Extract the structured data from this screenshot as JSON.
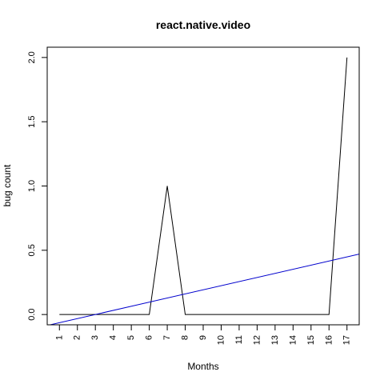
{
  "chart_data": {
    "type": "line",
    "title": "react.native.video",
    "xlabel": "Months",
    "ylabel": "bug count",
    "x": [
      1,
      2,
      3,
      4,
      5,
      6,
      7,
      8,
      9,
      10,
      11,
      12,
      13,
      14,
      15,
      16,
      17
    ],
    "x_tick_labels": [
      "1",
      "2",
      "3",
      "4",
      "5",
      "6",
      "7",
      "8",
      "9",
      "10",
      "11",
      "12",
      "13",
      "14",
      "15",
      "16",
      "17"
    ],
    "y_tick_values": [
      0.0,
      0.5,
      1.0,
      1.5,
      2.0
    ],
    "y_tick_labels": [
      "0.0",
      "0.5",
      "1.0",
      "1.5",
      "2.0"
    ],
    "xlim": [
      0.32,
      17.68
    ],
    "ylim": [
      -0.08,
      2.08
    ],
    "grid": false,
    "legend": "none",
    "series": [
      {
        "values": [
          0,
          0,
          0,
          0,
          0,
          0,
          1,
          0,
          0,
          0,
          0,
          0,
          0,
          0,
          0,
          0,
          2
        ],
        "color": "#000000"
      }
    ],
    "trend_line": {
      "intercept": -0.0956,
      "slope": 0.03199,
      "color": "#0000cd"
    }
  }
}
